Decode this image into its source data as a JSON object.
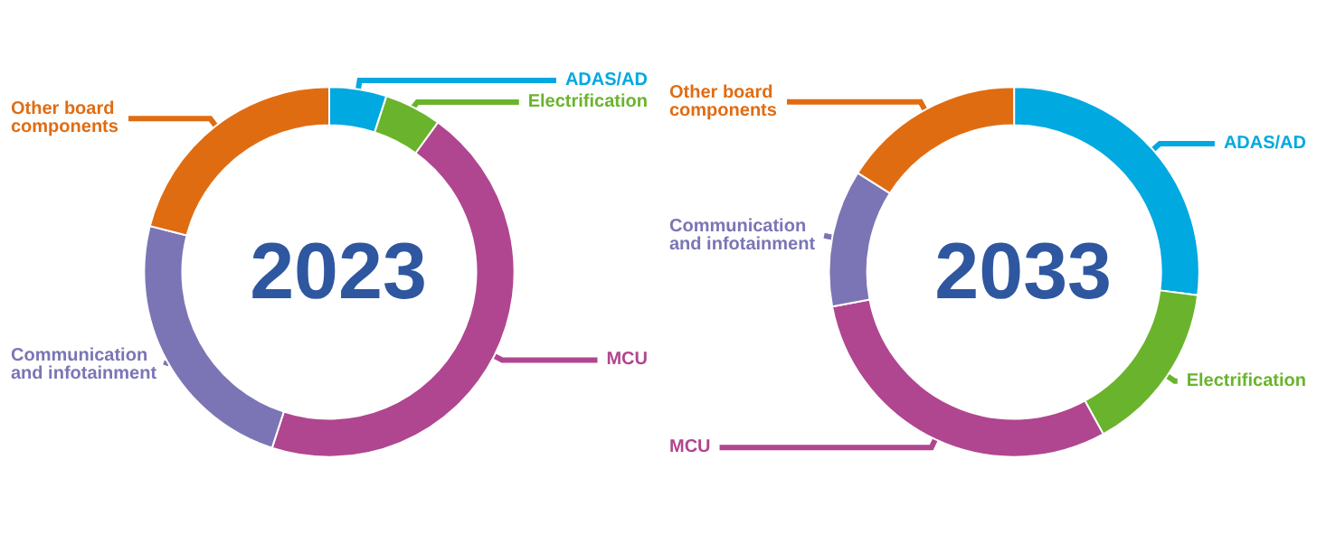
{
  "chart_data": [
    {
      "type": "donut",
      "title": "2023",
      "categories": [
        "ADAS/AD",
        "Electrification",
        "MCU",
        "Communication and infotainment",
        "Other board components"
      ],
      "values": [
        5,
        5,
        45,
        24,
        21
      ],
      "colors": [
        "#00a9e0",
        "#6ab42d",
        "#b0468f",
        "#7b75b5",
        "#e06c12"
      ],
      "legend": false
    },
    {
      "type": "donut",
      "title": "2033",
      "categories": [
        "ADAS/AD",
        "Electrification",
        "MCU",
        "Communication and infotainment",
        "Other board components"
      ],
      "values": [
        27,
        15,
        30,
        12,
        16
      ],
      "colors": [
        "#00a9e0",
        "#6ab42d",
        "#b0468f",
        "#7b75b5",
        "#e06c12"
      ],
      "legend": false
    }
  ]
}
